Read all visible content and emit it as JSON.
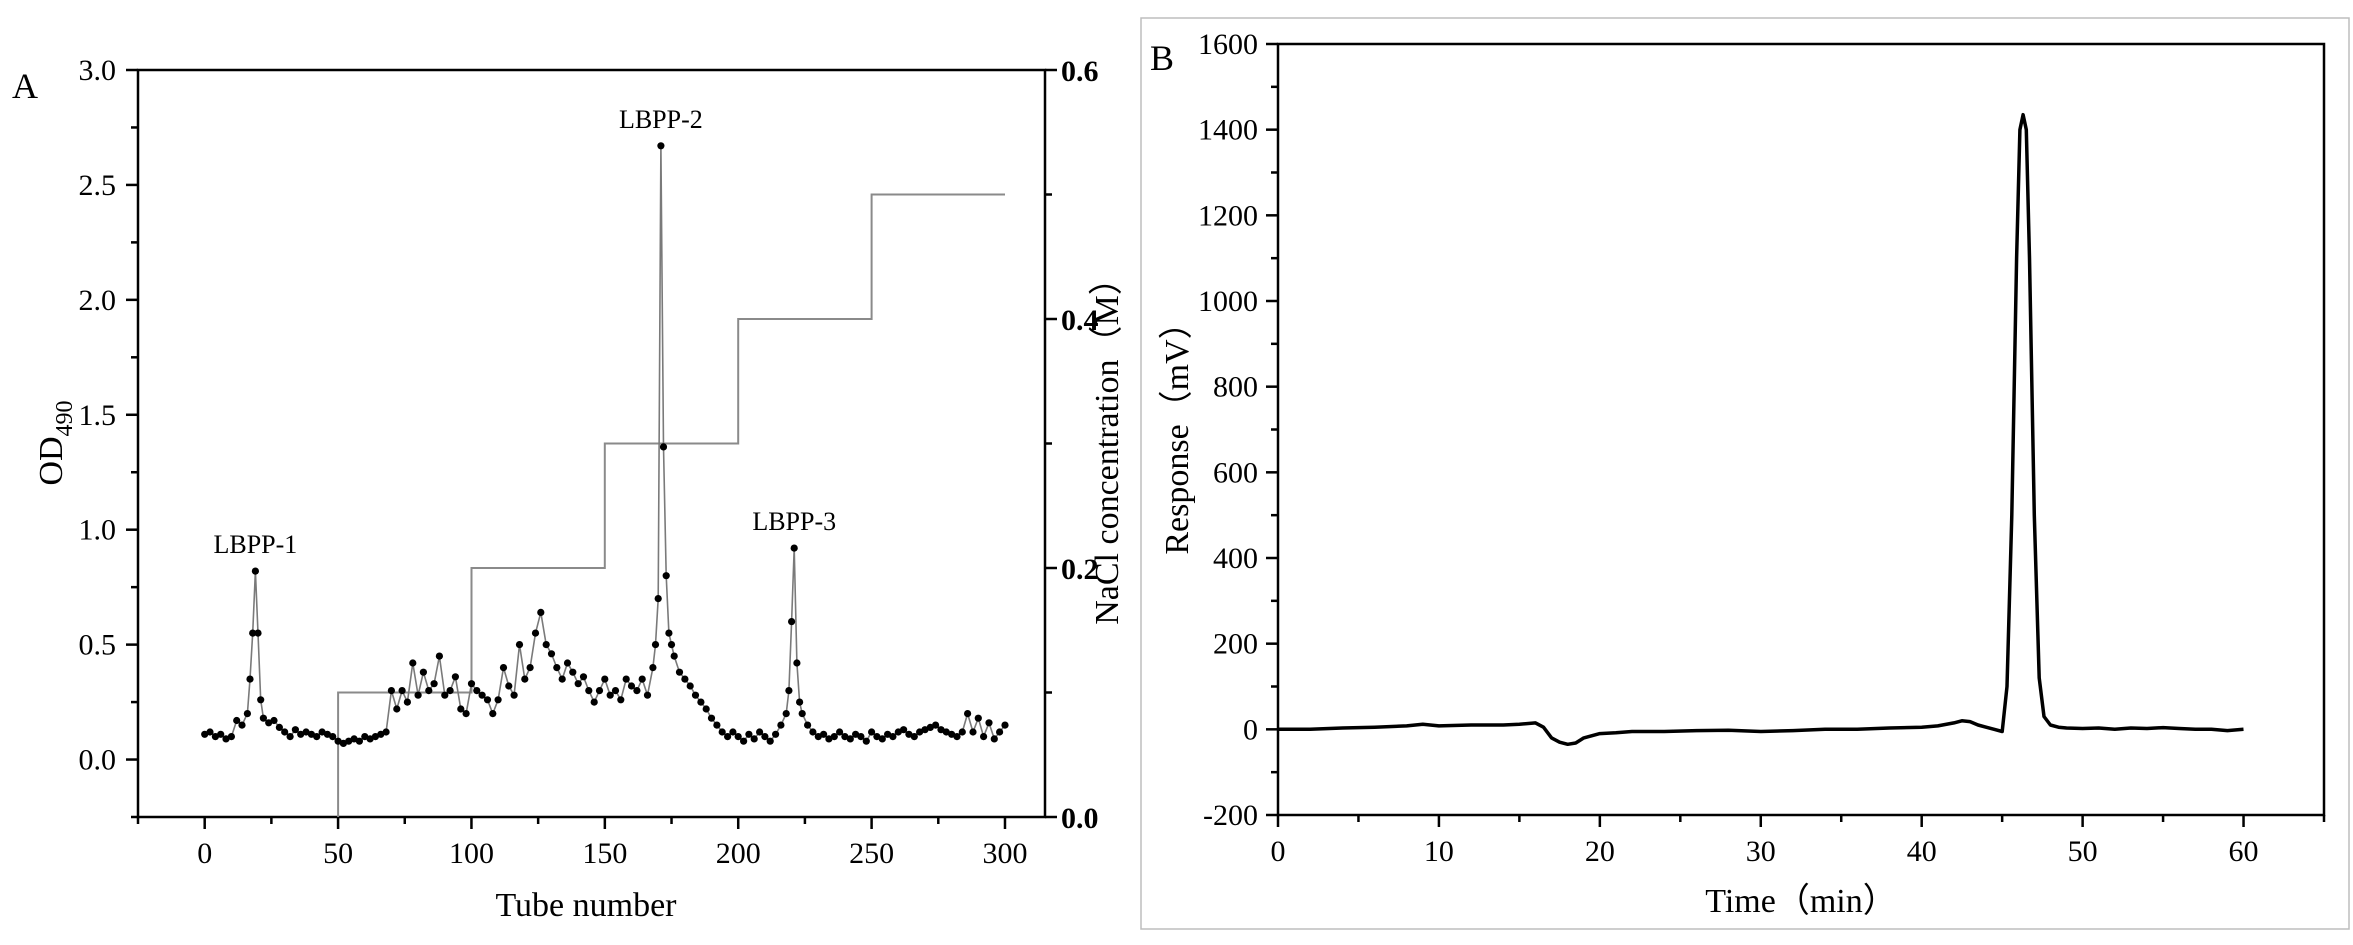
{
  "chart_data": [
    {
      "panel": "A",
      "type": "scatter",
      "xlabel": "Tube number",
      "ylabel": "OD",
      "ylabel_sub": "490",
      "y2label": "NaCl concentration（M）",
      "xlim": [
        -25,
        315
      ],
      "ylim": [
        -0.25,
        3.0
      ],
      "y2lim": [
        0.0,
        0.6
      ],
      "xticks": [
        0,
        50,
        100,
        150,
        200,
        250,
        300
      ],
      "yticks": [
        "0.0",
        "0.5",
        "1.0",
        "1.5",
        "2.0",
        "2.5",
        "3.0"
      ],
      "y2ticks": [
        "0.0",
        "0.2",
        "0.4",
        "0.6"
      ],
      "grid": false,
      "annotations": [
        {
          "text": "LBPP-1",
          "x": 19,
          "y": 0.82
        },
        {
          "text": "LBPP-2",
          "x": 171,
          "y": 2.67
        },
        {
          "text": "LBPP-3",
          "x": 221,
          "y": 0.92
        }
      ],
      "series": [
        {
          "role": "OD490 absorbance (primary axis)",
          "x": [
            0,
            2,
            4,
            6,
            8,
            10,
            12,
            14,
            16,
            17,
            18,
            19,
            20,
            21,
            22,
            24,
            26,
            28,
            30,
            32,
            34,
            36,
            38,
            40,
            42,
            44,
            46,
            48,
            50,
            52,
            54,
            56,
            58,
            60,
            62,
            64,
            66,
            68,
            70,
            72,
            74,
            76,
            78,
            80,
            82,
            84,
            86,
            88,
            90,
            92,
            94,
            96,
            98,
            100,
            102,
            104,
            106,
            108,
            110,
            112,
            114,
            116,
            118,
            120,
            122,
            124,
            126,
            128,
            130,
            132,
            134,
            136,
            138,
            140,
            142,
            144,
            146,
            148,
            150,
            152,
            154,
            156,
            158,
            160,
            162,
            164,
            166,
            168,
            169,
            170,
            171,
            172,
            173,
            174,
            175,
            176,
            178,
            180,
            182,
            184,
            186,
            188,
            190,
            192,
            194,
            196,
            198,
            200,
            202,
            204,
            206,
            208,
            210,
            212,
            214,
            216,
            218,
            219,
            220,
            221,
            222,
            223,
            224,
            226,
            228,
            230,
            232,
            234,
            236,
            238,
            240,
            242,
            244,
            246,
            248,
            250,
            252,
            254,
            256,
            258,
            260,
            262,
            264,
            266,
            268,
            270,
            272,
            274,
            276,
            278,
            280,
            282,
            284,
            286,
            288,
            290,
            292,
            294,
            296,
            298,
            300
          ],
          "y": [
            0.11,
            0.12,
            0.1,
            0.11,
            0.09,
            0.1,
            0.17,
            0.15,
            0.2,
            0.35,
            0.55,
            0.82,
            0.55,
            0.26,
            0.18,
            0.16,
            0.17,
            0.14,
            0.12,
            0.1,
            0.13,
            0.11,
            0.12,
            0.11,
            0.1,
            0.12,
            0.11,
            0.1,
            0.08,
            0.07,
            0.08,
            0.09,
            0.08,
            0.1,
            0.09,
            0.1,
            0.11,
            0.12,
            0.3,
            0.22,
            0.3,
            0.25,
            0.42,
            0.28,
            0.38,
            0.3,
            0.33,
            0.45,
            0.28,
            0.3,
            0.36,
            0.22,
            0.2,
            0.33,
            0.3,
            0.28,
            0.26,
            0.2,
            0.26,
            0.4,
            0.32,
            0.28,
            0.5,
            0.35,
            0.4,
            0.55,
            0.64,
            0.5,
            0.46,
            0.4,
            0.35,
            0.42,
            0.38,
            0.33,
            0.36,
            0.3,
            0.25,
            0.3,
            0.35,
            0.28,
            0.3,
            0.26,
            0.35,
            0.32,
            0.3,
            0.35,
            0.28,
            0.4,
            0.5,
            0.7,
            2.67,
            1.36,
            0.8,
            0.55,
            0.5,
            0.45,
            0.38,
            0.35,
            0.32,
            0.28,
            0.25,
            0.22,
            0.18,
            0.15,
            0.12,
            0.1,
            0.12,
            0.1,
            0.08,
            0.11,
            0.09,
            0.12,
            0.1,
            0.08,
            0.11,
            0.15,
            0.2,
            0.3,
            0.6,
            0.92,
            0.42,
            0.25,
            0.2,
            0.15,
            0.12,
            0.1,
            0.11,
            0.09,
            0.1,
            0.12,
            0.1,
            0.09,
            0.11,
            0.1,
            0.08,
            0.12,
            0.1,
            0.09,
            0.11,
            0.1,
            0.12,
            0.13,
            0.11,
            0.1,
            0.12,
            0.13,
            0.14,
            0.15,
            0.13,
            0.12,
            0.11,
            0.1,
            0.12,
            0.2,
            0.12,
            0.18,
            0.1,
            0.16,
            0.09,
            0.12,
            0.15
          ]
        },
        {
          "role": "NaCl step gradient (secondary axis)",
          "x": [
            50,
            50,
            100,
            100,
            150,
            150,
            200,
            200,
            250,
            250,
            300
          ],
          "y2": [
            0.0,
            0.1,
            0.1,
            0.2,
            0.2,
            0.3,
            0.3,
            0.4,
            0.4,
            0.5,
            0.5
          ]
        }
      ]
    },
    {
      "panel": "B",
      "type": "line",
      "xlabel": "Time（min）",
      "ylabel": "Response（mV）",
      "xlim": [
        0,
        65
      ],
      "ylim": [
        -200,
        1600
      ],
      "xticks": [
        0,
        10,
        20,
        30,
        40,
        50,
        60
      ],
      "yticks": [
        "-200",
        "0",
        "200",
        "400",
        "600",
        "800",
        "1000",
        "1200",
        "1400",
        "1600"
      ],
      "grid": false,
      "series": [
        {
          "x": [
            0,
            2,
            4,
            6,
            8,
            9,
            10,
            12,
            14,
            15,
            16,
            16.5,
            17,
            17.5,
            18,
            18.5,
            19,
            20,
            21,
            22,
            24,
            26,
            28,
            30,
            32,
            34,
            36,
            38,
            40,
            41,
            42,
            42.5,
            43,
            43.5,
            44,
            44.5,
            45,
            45.3,
            45.6,
            45.9,
            46.1,
            46.3,
            46.5,
            46.7,
            47,
            47.3,
            47.6,
            48,
            48.5,
            49,
            50,
            51,
            52,
            53,
            54,
            55,
            56,
            57,
            58,
            59,
            60
          ],
          "y": [
            0,
            0,
            3,
            5,
            8,
            12,
            8,
            10,
            10,
            12,
            15,
            5,
            -20,
            -30,
            -35,
            -32,
            -20,
            -10,
            -8,
            -5,
            -5,
            -3,
            -2,
            -5,
            -3,
            0,
            0,
            3,
            5,
            8,
            15,
            20,
            18,
            10,
            5,
            0,
            -5,
            100,
            500,
            1100,
            1400,
            1435,
            1400,
            1100,
            500,
            120,
            30,
            10,
            5,
            3,
            2,
            3,
            0,
            3,
            2,
            4,
            2,
            0,
            0,
            -3,
            0
          ]
        }
      ]
    }
  ]
}
